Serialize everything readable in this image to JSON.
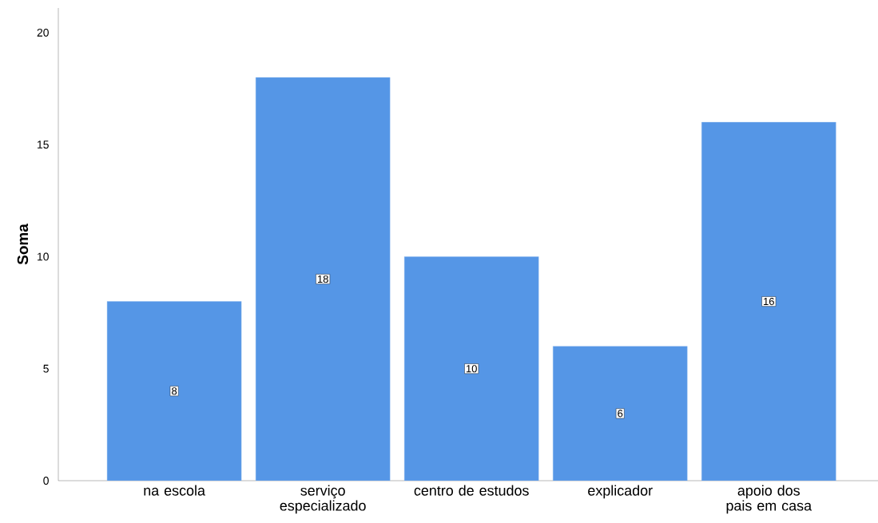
{
  "chart_data": {
    "type": "bar",
    "ylabel": "Soma",
    "categories": [
      "na escola",
      "serviço especializado",
      "centro de estudos",
      "explicador",
      "apoio dos pais em casa"
    ],
    "values": [
      8,
      18,
      10,
      6,
      16
    ],
    "color": "#5596e6",
    "ylim": [
      0,
      21.1
    ],
    "yticks": [
      0,
      5,
      10,
      15,
      20
    ],
    "data_labels": true,
    "grid": false
  }
}
